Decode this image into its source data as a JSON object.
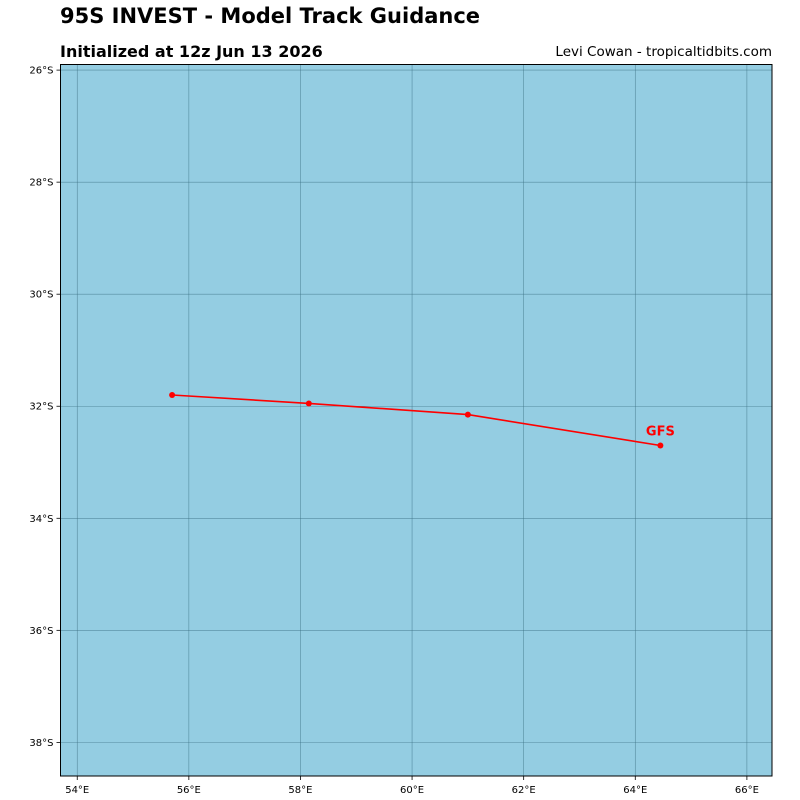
{
  "header": {
    "title": "95S INVEST - Model Track Guidance",
    "subtitle": "Initialized at 12z Jun 13 2026",
    "credit": "Levi Cowan - tropicaltidbits.com"
  },
  "map": {
    "lon_range": [
      53.7,
      66.45
    ],
    "lat_range": [
      -38.6,
      -25.9
    ],
    "ocean_color": "#94cde2",
    "grid_color": "#3a6f82",
    "lon_ticks": [
      {
        "value": 54,
        "label": "54°E"
      },
      {
        "value": 56,
        "label": "56°E"
      },
      {
        "value": 58,
        "label": "58°E"
      },
      {
        "value": 60,
        "label": "60°E"
      },
      {
        "value": 62,
        "label": "62°E"
      },
      {
        "value": 64,
        "label": "64°E"
      },
      {
        "value": 66,
        "label": "66°E"
      }
    ],
    "lat_ticks": [
      {
        "value": -26,
        "label": "26°S"
      },
      {
        "value": -28,
        "label": "28°S"
      },
      {
        "value": -30,
        "label": "30°S"
      },
      {
        "value": -32,
        "label": "32°S"
      },
      {
        "value": -34,
        "label": "34°S"
      },
      {
        "value": -36,
        "label": "36°S"
      },
      {
        "value": -38,
        "label": "38°S"
      }
    ]
  },
  "tracks": [
    {
      "model": "GFS",
      "color": "#ff0000",
      "points": [
        {
          "lon": 55.7,
          "lat": -31.8
        },
        {
          "lon": 58.15,
          "lat": -31.95
        },
        {
          "lon": 61.0,
          "lat": -32.15
        },
        {
          "lon": 64.45,
          "lat": -32.7
        }
      ]
    }
  ]
}
